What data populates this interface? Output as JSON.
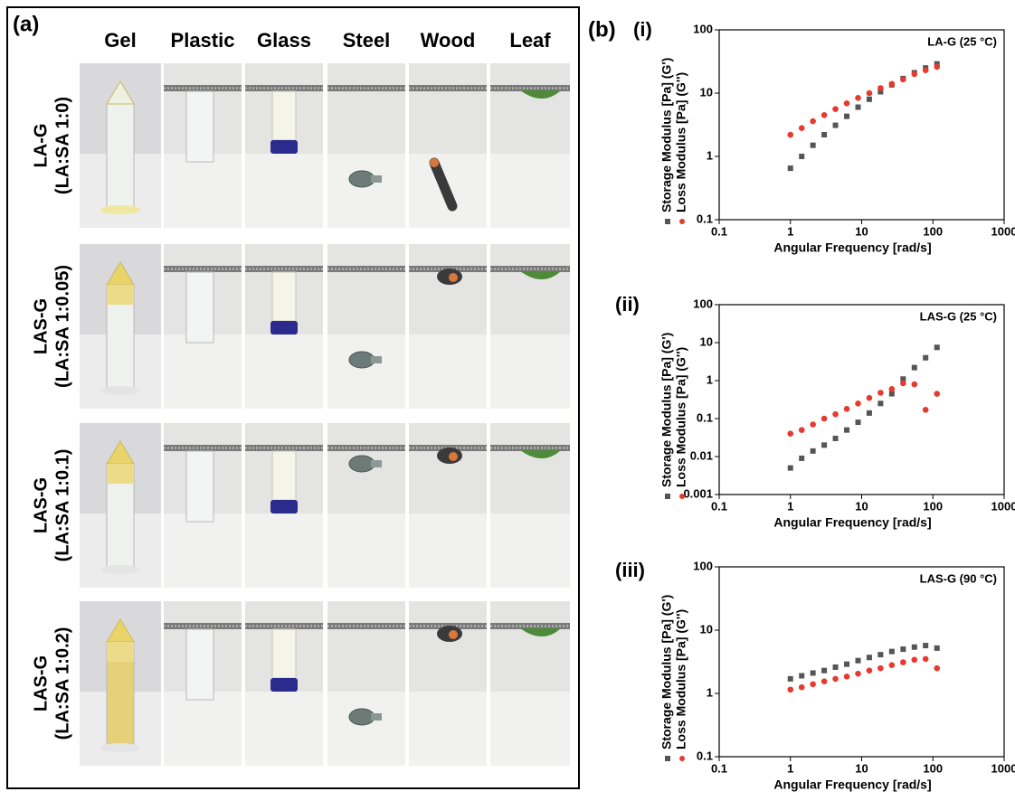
{
  "panel_a": {
    "label": "(a)",
    "columns": [
      "Gel",
      "Plastic",
      "Glass",
      "Steel",
      "Wood",
      "Leaf"
    ],
    "rows": [
      {
        "name": "LA-G",
        "ratio": "(LA:SA 1:0)"
      },
      {
        "name": "LAS-G",
        "ratio": "(LA:SA 1:0.05)"
      },
      {
        "name": "LAS-G",
        "ratio": "(LA:SA 1:0.1)"
      },
      {
        "name": "LAS-G",
        "ratio": "(LA:SA 1:0.2)"
      }
    ]
  },
  "panel_b": {
    "label": "(b)"
  },
  "chart_data": [
    {
      "type": "scatter",
      "panel": "(i)",
      "annotation": "LA-G (25 °C)",
      "xlabel": "Angular Frequency [rad/s]",
      "x": [
        1,
        1.44,
        2.07,
        2.98,
        4.29,
        6.18,
        8.9,
        12.8,
        18.4,
        26.5,
        38.2,
        55,
        79,
        114
      ],
      "series": [
        {
          "name": "Storage Modulus [Pa] (G')",
          "color": "#555555",
          "marker": "square",
          "values": [
            0.65,
            1.0,
            1.5,
            2.2,
            3.1,
            4.3,
            6.0,
            8.0,
            10.5,
            13.5,
            17,
            21,
            25,
            29
          ]
        },
        {
          "name": "Loss Modulus [Pa] (G'')",
          "color": "#e8392f",
          "marker": "circle",
          "values": [
            2.2,
            2.8,
            3.6,
            4.5,
            5.6,
            6.9,
            8.4,
            10,
            12,
            14,
            16.5,
            20,
            23,
            26
          ]
        }
      ],
      "xscale": "log",
      "yscale": "log",
      "xlim": [
        0.1,
        1000
      ],
      "ylim": [
        0.1,
        100
      ],
      "xticks": [
        0.1,
        1,
        10,
        100,
        1000
      ],
      "yticks": [
        0.1,
        1,
        10,
        100
      ]
    },
    {
      "type": "scatter",
      "panel": "(ii)",
      "annotation": "LAS-G (25 °C)",
      "xlabel": "Angular Frequency [rad/s]",
      "x": [
        1,
        1.44,
        2.07,
        2.98,
        4.29,
        6.18,
        8.9,
        12.8,
        18.4,
        26.5,
        38.2,
        55,
        79,
        114
      ],
      "series": [
        {
          "name": "Storage Modulus [Pa] (G')",
          "color": "#555555",
          "marker": "square",
          "values": [
            0.005,
            0.009,
            0.014,
            0.02,
            0.03,
            0.05,
            0.08,
            0.14,
            0.25,
            0.45,
            1.1,
            2.2,
            4,
            7.5
          ]
        },
        {
          "name": "Loss Modulus [Pa] (G'')",
          "color": "#e8392f",
          "marker": "circle",
          "values": [
            0.04,
            0.05,
            0.07,
            0.1,
            0.13,
            0.18,
            0.25,
            0.35,
            0.48,
            0.6,
            0.85,
            0.8,
            0.17,
            0.45
          ]
        }
      ],
      "xscale": "log",
      "yscale": "log",
      "xlim": [
        0.1,
        1000
      ],
      "ylim": [
        0.001,
        100
      ],
      "xticks": [
        0.1,
        1,
        10,
        100,
        1000
      ],
      "yticks": [
        0.001,
        0.01,
        0.1,
        1,
        10,
        100
      ]
    },
    {
      "type": "scatter",
      "panel": "(iii)",
      "annotation": "LAS-G (90 °C)",
      "xlabel": "Angular Frequency [rad/s]",
      "x": [
        1,
        1.44,
        2.07,
        2.98,
        4.29,
        6.18,
        8.9,
        12.8,
        18.4,
        26.5,
        38.2,
        55,
        79,
        114
      ],
      "series": [
        {
          "name": "Storage Modulus [Pa] (G')",
          "color": "#555555",
          "marker": "square",
          "values": [
            1.7,
            1.9,
            2.1,
            2.3,
            2.6,
            2.9,
            3.3,
            3.7,
            4.1,
            4.6,
            5.0,
            5.4,
            5.7,
            5.2
          ]
        },
        {
          "name": "Loss Modulus [Pa] (G'')",
          "color": "#e8392f",
          "marker": "circle",
          "values": [
            1.15,
            1.25,
            1.4,
            1.55,
            1.7,
            1.85,
            2.05,
            2.3,
            2.5,
            2.8,
            3.1,
            3.4,
            3.5,
            2.5
          ]
        }
      ],
      "xscale": "log",
      "yscale": "log",
      "xlim": [
        0.1,
        1000
      ],
      "ylim": [
        0.1,
        100
      ],
      "xticks": [
        0.1,
        1,
        10,
        100,
        1000
      ],
      "yticks": [
        0.1,
        1,
        10,
        100
      ]
    }
  ]
}
